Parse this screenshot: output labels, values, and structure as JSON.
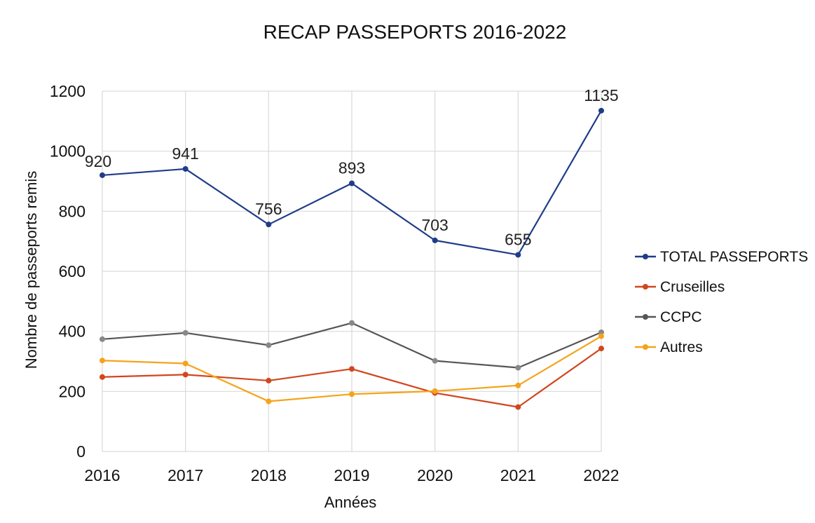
{
  "chart_data": {
    "type": "line",
    "title": "RECAP PASSEPORTS  2016-2022",
    "xlabel": "Années",
    "ylabel": "Nombre de passeports remis",
    "ylim": [
      0,
      1200
    ],
    "yticks": [
      0,
      200,
      400,
      600,
      800,
      1000,
      1200
    ],
    "categories": [
      "2016",
      "2017",
      "2018",
      "2019",
      "2020",
      "2021",
      "2022"
    ],
    "grid": true,
    "legend_position": "right",
    "series": [
      {
        "name": "TOTAL PASSEPORTS",
        "color": "#1f3c88",
        "values": [
          920,
          941,
          756,
          893,
          703,
          655,
          1135
        ],
        "labels": [
          "920",
          "941",
          "756",
          "893",
          "703",
          "655",
          "1135"
        ]
      },
      {
        "name": "Cruseilles",
        "color": "#d2461e",
        "values": [
          248,
          256,
          236,
          275,
          195,
          148,
          343
        ]
      },
      {
        "name": "CCPC",
        "color": "#555555",
        "values": [
          374,
          395,
          354,
          428,
          302,
          279,
          397
        ]
      },
      {
        "name": "Autres",
        "color": "#f5a31a",
        "values": [
          303,
          293,
          167,
          191,
          201,
          220,
          384
        ]
      }
    ]
  }
}
